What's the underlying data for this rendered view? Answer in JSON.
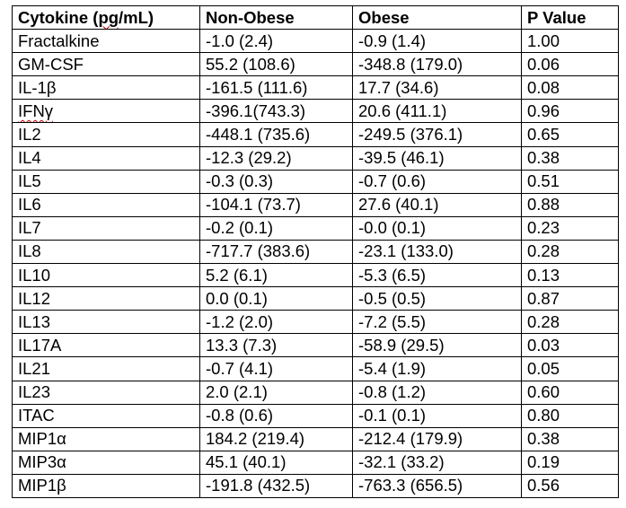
{
  "table": {
    "headers": [
      "Cytokine (pg/mL)",
      "Non-Obese",
      "Obese",
      "P Value"
    ],
    "rows": [
      [
        "Fractalkine",
        "-1.0 (2.4)",
        "-0.9 (1.4)",
        "1.00"
      ],
      [
        "GM-CSF",
        "55.2 (108.6)",
        "-348.8 (179.0)",
        "0.06"
      ],
      [
        "IL-1β",
        "-161.5 (111.6)",
        "17.7 (34.6)",
        "0.08"
      ],
      [
        "IFNγ",
        "-396.1(743.3)",
        "20.6 (411.1)",
        "0.96"
      ],
      [
        "IL2",
        "-448.1 (735.6)",
        "-249.5 (376.1)",
        "0.65"
      ],
      [
        "IL4",
        "-12.3 (29.2)",
        "-39.5 (46.1)",
        "0.38"
      ],
      [
        "IL5",
        "-0.3 (0.3)",
        "-0.7 (0.6)",
        "0.51"
      ],
      [
        "IL6",
        "-104.1 (73.7)",
        "27.6 (40.1)",
        "0.88"
      ],
      [
        "IL7",
        "-0.2 (0.1)",
        "-0.0 (0.1)",
        "0.23"
      ],
      [
        "IL8",
        "-717.7 (383.6)",
        "-23.1 (133.0)",
        "0.28"
      ],
      [
        "IL10",
        "5.2 (6.1)",
        "-5.3 (6.5)",
        "0.13"
      ],
      [
        "IL12",
        "0.0 (0.1)",
        "-0.5 (0.5)",
        "0.87"
      ],
      [
        "IL13",
        "-1.2 (2.0)",
        "-7.2 (5.5)",
        "0.28"
      ],
      [
        "IL17A",
        "13.3 (7.3)",
        "-58.9 (29.5)",
        "0.03"
      ],
      [
        "IL21",
        "-0.7 (4.1)",
        "-5.4 (1.9)",
        "0.05"
      ],
      [
        "IL23",
        "2.0 (2.1)",
        "-0.8 (1.2)",
        "0.60"
      ],
      [
        "ITAC",
        "-0.8 (0.6)",
        "-0.1 (0.1)",
        "0.80"
      ],
      [
        "MIP1α",
        "184.2 (219.4)",
        "-212.4 (179.9)",
        "0.38"
      ],
      [
        "MIP3α",
        "45.1 (40.1)",
        "-32.1 (33.2)",
        "0.19"
      ],
      [
        "MIP1β",
        "-191.8 (432.5)",
        "-763.3 (656.5)",
        "0.56"
      ]
    ]
  },
  "colors": {
    "border": "#000000",
    "text": "#000000",
    "spellcheck_underline": "#c00000"
  }
}
